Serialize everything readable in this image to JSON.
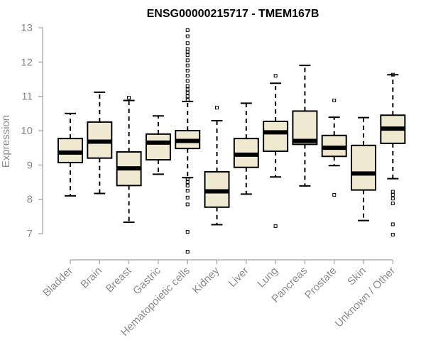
{
  "chart_data": {
    "type": "boxplot",
    "title": "ENSG00000215717 - TMEM167B",
    "ylabel": "Expression",
    "xlabel": "",
    "ylim": [
      6.4,
      13.0
    ],
    "yticks": [
      7,
      8,
      9,
      10,
      11,
      12,
      13
    ],
    "box_fill": "#efe9d1",
    "box_stroke": "#000000",
    "axis_color": "#8c8c8c",
    "categories": [
      "Bladder",
      "Brain",
      "Breast",
      "Gastric",
      "Hematopoietic cells",
      "Kidney",
      "Liver",
      "Lung",
      "Pancreas",
      "Prostate",
      "Skin",
      "Unknown / Other"
    ],
    "boxes": [
      {
        "category": "Bladder",
        "whisker_low": 8.1,
        "q1": 9.07,
        "median": 9.36,
        "q3": 9.77,
        "whisker_high": 10.5,
        "outliers": []
      },
      {
        "category": "Brain",
        "whisker_low": 8.17,
        "q1": 9.2,
        "median": 9.68,
        "q3": 10.25,
        "whisker_high": 11.12,
        "outliers": []
      },
      {
        "category": "Breast",
        "whisker_low": 7.33,
        "q1": 8.4,
        "median": 8.9,
        "q3": 9.38,
        "whisker_high": 10.88,
        "outliers": [
          10.96
        ]
      },
      {
        "category": "Gastric",
        "whisker_low": 8.73,
        "q1": 9.15,
        "median": 9.65,
        "q3": 9.9,
        "whisker_high": 10.43,
        "outliers": []
      },
      {
        "category": "Hematopoietic cells",
        "whisker_low": 8.63,
        "q1": 9.48,
        "median": 9.7,
        "q3": 10.0,
        "whisker_high": 10.85,
        "outliers": [
          6.47,
          7.05,
          7.85,
          8.05,
          8.25,
          8.4,
          8.5,
          8.6,
          10.9,
          11.0,
          11.1,
          11.2,
          11.3,
          11.45,
          11.6,
          11.75,
          11.9,
          12.05,
          12.2,
          12.3,
          12.38,
          12.55,
          12.75,
          12.93
        ]
      },
      {
        "category": "Kidney",
        "whisker_low": 7.26,
        "q1": 7.77,
        "median": 8.23,
        "q3": 8.8,
        "whisker_high": 10.29,
        "outliers": [
          10.67
        ]
      },
      {
        "category": "Liver",
        "whisker_low": 8.15,
        "q1": 8.93,
        "median": 9.3,
        "q3": 9.77,
        "whisker_high": 10.8,
        "outliers": []
      },
      {
        "category": "Lung",
        "whisker_low": 8.65,
        "q1": 9.4,
        "median": 9.95,
        "q3": 10.27,
        "whisker_high": 11.38,
        "outliers": [
          7.22,
          11.6
        ]
      },
      {
        "category": "Pancreas",
        "whisker_low": 8.39,
        "q1": 9.6,
        "median": 9.7,
        "q3": 10.57,
        "whisker_high": 11.9,
        "outliers": []
      },
      {
        "category": "Prostate",
        "whisker_low": 8.98,
        "q1": 9.25,
        "median": 9.5,
        "q3": 9.86,
        "whisker_high": 10.39,
        "outliers": [
          8.13,
          10.88
        ]
      },
      {
        "category": "Skin",
        "whisker_low": 7.38,
        "q1": 8.27,
        "median": 8.75,
        "q3": 9.57,
        "whisker_high": 10.38,
        "outliers": []
      },
      {
        "category": "Unknown / Other",
        "whisker_low": 8.6,
        "q1": 9.63,
        "median": 10.06,
        "q3": 10.45,
        "whisker_high": 11.63,
        "outliers": [
          6.97,
          7.27,
          7.88,
          8.02,
          8.13,
          8.22,
          11.63
        ]
      }
    ]
  }
}
